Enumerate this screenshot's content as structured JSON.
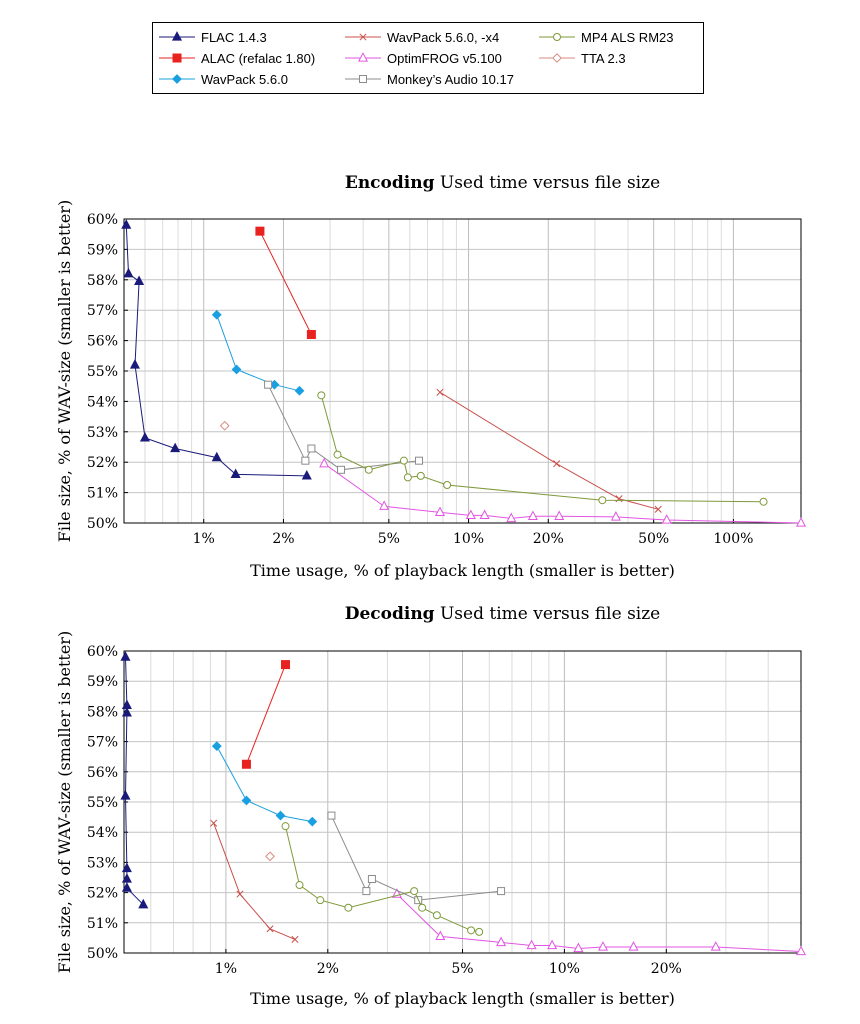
{
  "legend": [
    {
      "label": "FLAC 1.4.3",
      "color": "#1a1a7a",
      "marker": "triangle-filled"
    },
    {
      "label": "ALAC (refalac 1.80)",
      "color": "#e8231f",
      "marker": "square-filled"
    },
    {
      "label": "WavPack 5.6.0",
      "color": "#1aa0e0",
      "marker": "diamond-filled"
    },
    {
      "label": "WavPack 5.6.0, -x4",
      "color": "#c8504b",
      "marker": "cross"
    },
    {
      "label": "OptimFROG v5.100",
      "color": "#e255e2",
      "marker": "triangle-open"
    },
    {
      "label": "Monkey’s Audio 10.17",
      "color": "#8c8c8c",
      "marker": "square-open"
    },
    {
      "label": "MP4 ALS RM23",
      "color": "#7e9a3a",
      "marker": "circle-open"
    },
    {
      "label": "TTA 2.3",
      "color": "#d98a80",
      "marker": "diamond-open"
    }
  ],
  "chart_data": [
    {
      "type": "line",
      "title_bold": "Encoding",
      "title_rest": " Used time versus file size",
      "xlabel": "Time usage, % of playback length (smaller is better)",
      "ylabel": "File size, % of WAV-size (smaller is better)",
      "xscale": "log",
      "xlim": [
        0.5,
        180
      ],
      "ylim": [
        50,
        60
      ],
      "xticks": [
        1,
        2,
        5,
        10,
        20,
        50,
        100
      ],
      "xtick_labels": [
        "1%",
        "2%",
        "5%",
        "10%",
        "20%",
        "50%",
        "100%"
      ],
      "yticks": [
        50,
        51,
        52,
        53,
        54,
        55,
        56,
        57,
        58,
        59,
        60
      ],
      "ytick_labels": [
        "50%",
        "51%",
        "52%",
        "53%",
        "54%",
        "55%",
        "56%",
        "57%",
        "58%",
        "59%",
        "60%"
      ],
      "grid": true,
      "series": [
        {
          "name": "FLAC 1.4.3",
          "points": [
            [
              0.51,
              59.8
            ],
            [
              0.52,
              58.2
            ],
            [
              0.57,
              57.95
            ],
            [
              0.55,
              55.2
            ],
            [
              0.6,
              52.8
            ],
            [
              0.78,
              52.45
            ],
            [
              1.12,
              52.15
            ],
            [
              1.32,
              51.6
            ],
            [
              2.45,
              51.55
            ]
          ]
        },
        {
          "name": "ALAC (refalac 1.80)",
          "points": [
            [
              1.63,
              59.6
            ],
            [
              2.55,
              56.2
            ]
          ]
        },
        {
          "name": "WavPack 5.6.0",
          "points": [
            [
              1.12,
              56.85
            ],
            [
              1.33,
              55.05
            ],
            [
              1.85,
              54.55
            ],
            [
              2.3,
              54.35
            ]
          ]
        },
        {
          "name": "WavPack 5.6.0, -x4",
          "points": [
            [
              7.8,
              54.3
            ],
            [
              21.5,
              51.95
            ],
            [
              37,
              50.8
            ],
            [
              52,
              50.45
            ]
          ]
        },
        {
          "name": "OptimFROG v5.100",
          "points": [
            [
              2.85,
              51.95
            ],
            [
              4.8,
              50.55
            ],
            [
              7.8,
              50.35
            ],
            [
              10.2,
              50.25
            ],
            [
              11.5,
              50.25
            ],
            [
              14.5,
              50.15
            ],
            [
              17.5,
              50.22
            ],
            [
              22,
              50.22
            ],
            [
              36,
              50.2
            ],
            [
              56,
              50.1
            ],
            [
              180,
              50.0
            ]
          ]
        },
        {
          "name": "Monkey’s Audio 10.17",
          "points": [
            [
              1.75,
              54.55
            ],
            [
              2.42,
              52.05
            ],
            [
              2.55,
              52.45
            ],
            [
              3.3,
              51.75
            ],
            [
              6.5,
              52.05
            ]
          ]
        },
        {
          "name": "MP4 ALS RM23",
          "points": [
            [
              2.78,
              54.2
            ],
            [
              3.2,
              52.25
            ],
            [
              4.2,
              51.75
            ],
            [
              5.7,
              52.05
            ],
            [
              5.9,
              51.5
            ],
            [
              6.6,
              51.55
            ],
            [
              8.3,
              51.25
            ],
            [
              32,
              50.75
            ],
            [
              130,
              50.7
            ]
          ]
        },
        {
          "name": "TTA 2.3",
          "points": [
            [
              1.2,
              53.2
            ]
          ]
        }
      ]
    },
    {
      "type": "line",
      "title_bold": "Decoding",
      "title_rest": " Used time versus file size",
      "xlabel": "Time usage, % of playback length (smaller is better)",
      "ylabel": "File size, % of WAV-size (smaller is better)",
      "xscale": "log",
      "xlim": [
        0.5,
        50
      ],
      "ylim": [
        50,
        60
      ],
      "xticks": [
        1,
        2,
        5,
        10,
        20
      ],
      "xtick_labels": [
        "1%",
        "2%",
        "5%",
        "10%",
        "20%"
      ],
      "yticks": [
        50,
        51,
        52,
        53,
        54,
        55,
        56,
        57,
        58,
        59,
        60
      ],
      "ytick_labels": [
        "50%",
        "51%",
        "52%",
        "53%",
        "54%",
        "55%",
        "56%",
        "57%",
        "58%",
        "59%",
        "60%"
      ],
      "grid": true,
      "series": [
        {
          "name": "FLAC 1.4.3",
          "points": [
            [
              0.505,
              59.8
            ],
            [
              0.51,
              58.2
            ],
            [
              0.51,
              57.95
            ],
            [
              0.505,
              55.2
            ],
            [
              0.51,
              52.8
            ],
            [
              0.51,
              52.45
            ],
            [
              0.51,
              52.15
            ],
            [
              0.57,
              51.6
            ]
          ]
        },
        {
          "name": "ALAC (refalac 1.80)",
          "points": [
            [
              1.5,
              59.55
            ],
            [
              1.15,
              56.25
            ]
          ]
        },
        {
          "name": "WavPack 5.6.0",
          "points": [
            [
              0.94,
              56.85
            ],
            [
              1.15,
              55.05
            ],
            [
              1.45,
              54.55
            ],
            [
              1.8,
              54.35
            ]
          ]
        },
        {
          "name": "WavPack 5.6.0, -x4",
          "points": [
            [
              0.92,
              54.3
            ],
            [
              1.1,
              51.95
            ],
            [
              1.35,
              50.8
            ],
            [
              1.6,
              50.45
            ]
          ]
        },
        {
          "name": "OptimFROG v5.100",
          "points": [
            [
              3.2,
              51.95
            ],
            [
              4.3,
              50.55
            ],
            [
              6.5,
              50.35
            ],
            [
              8,
              50.25
            ],
            [
              9.2,
              50.25
            ],
            [
              11,
              50.15
            ],
            [
              13,
              50.2
            ],
            [
              16,
              50.2
            ],
            [
              28,
              50.2
            ],
            [
              50,
              50.05
            ]
          ]
        },
        {
          "name": "Monkey’s Audio 10.17",
          "points": [
            [
              2.05,
              54.55
            ],
            [
              2.6,
              52.05
            ],
            [
              2.7,
              52.45
            ],
            [
              3.7,
              51.75
            ],
            [
              6.5,
              52.05
            ]
          ]
        },
        {
          "name": "MP4 ALS RM23",
          "points": [
            [
              1.5,
              54.2
            ],
            [
              1.65,
              52.25
            ],
            [
              1.9,
              51.75
            ],
            [
              2.3,
              51.5
            ],
            [
              3.6,
              52.05
            ],
            [
              3.8,
              51.5
            ],
            [
              4.2,
              51.25
            ],
            [
              5.3,
              50.75
            ],
            [
              5.6,
              50.7
            ]
          ]
        },
        {
          "name": "TTA 2.3",
          "points": [
            [
              1.35,
              53.2
            ]
          ]
        }
      ]
    }
  ]
}
